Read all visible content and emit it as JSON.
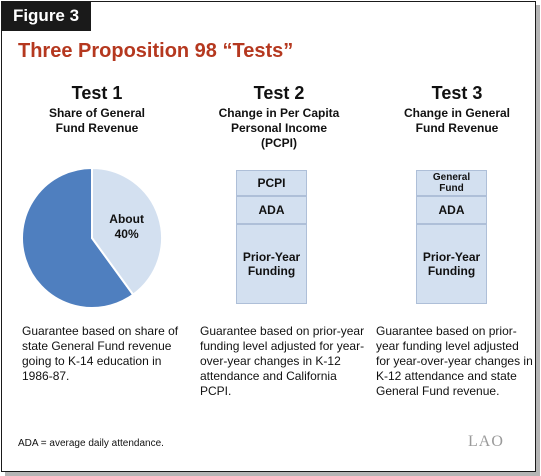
{
  "figure_label": "Figure 3",
  "title": "Three Proposition 98 “Tests”",
  "tests": [
    {
      "label": "Test 1",
      "subtitle": "Share of General Fund Revenue",
      "description": "Guarantee based on share of state General Fund revenue going to K-14 education in 1986-87."
    },
    {
      "label": "Test 2",
      "subtitle": "Change in Per Capita Personal Income (PCPI)",
      "description": "Guarantee based on prior-year funding level adjusted for year-over-year changes in K-12 attendance and California PCPI.",
      "blocks": [
        "PCPI",
        "ADA",
        "Prior-Year Funding"
      ]
    },
    {
      "label": "Test 3",
      "subtitle": "Change in General Fund Revenue",
      "description": "Guarantee based on prior-year funding level adjusted for year-over-year changes in K-12 attendance and state General Fund revenue.",
      "blocks": [
        "General Fund",
        "ADA",
        "Prior-Year Funding"
      ]
    }
  ],
  "pie": {
    "slice_label": "About 40%",
    "slice_fraction": 0.4,
    "colors": {
      "slice": "#d3e0f0",
      "rest": "#4f7fbf",
      "edge": "#ffffff"
    }
  },
  "footnote": "ADA = average daily attendance.",
  "logo": "LAO"
}
